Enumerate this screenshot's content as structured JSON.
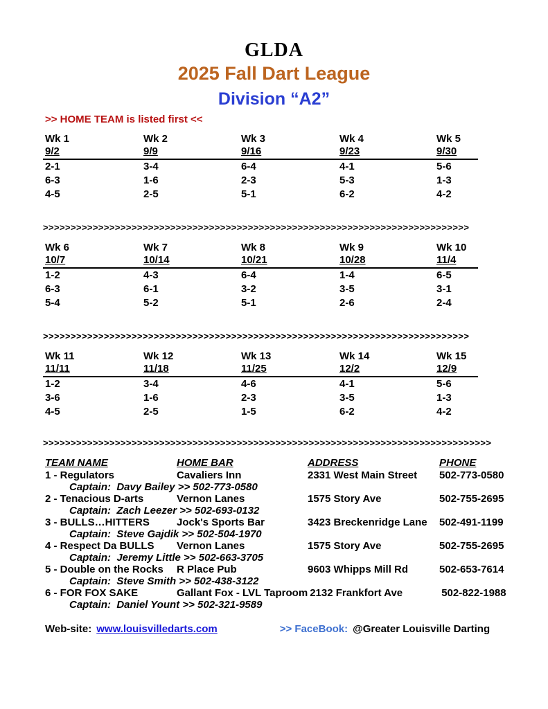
{
  "header": {
    "org": "GLDA",
    "title": "2025 Fall Dart League",
    "division": "Division “A2”",
    "home_team_note": ">> HOME TEAM is listed first <<"
  },
  "separators": {
    "line_a": ">>>>>>>>>>>>>>>>>>>>>>>>>>>>>>>>>>>>>>>>>>>>>>>>>>>>>>>>>>>>>>>>>>>>>>>>>>>>>",
    "line_b": ">>>>>>>>>>>>>>>>>>>>>>>>>>>>>>>>>>>>>>>>>>>>>>>>>>>>>>>>>>>>>>>>>>>>>>>>>>>>>>>>>"
  },
  "colors": {
    "title_orange": "#bc641f",
    "division_blue": "#2a3ed2",
    "note_red": "#b81212",
    "link_blue": "#1717d9",
    "facebook_blue": "#3e70d0"
  },
  "schedule": {
    "blocks": [
      {
        "weeks": [
          {
            "label": "Wk 1",
            "date": "9/2"
          },
          {
            "label": "Wk 2",
            "date": "9/9"
          },
          {
            "label": "Wk 3",
            "date": "9/16"
          },
          {
            "label": "Wk 4",
            "date": "9/23"
          },
          {
            "label": "Wk 5",
            "date": "9/30"
          }
        ],
        "rows": [
          [
            "2-1",
            "3-4",
            "6-4",
            "4-1",
            "5-6"
          ],
          [
            "6-3",
            "1-6",
            "2-3",
            "5-3",
            "1-3"
          ],
          [
            "4-5",
            "2-5",
            "5-1",
            "6-2",
            "4-2"
          ]
        ]
      },
      {
        "weeks": [
          {
            "label": "Wk 6",
            "date": "10/7"
          },
          {
            "label": "Wk 7",
            "date": "10/14"
          },
          {
            "label": "Wk 8",
            "date": "10/21"
          },
          {
            "label": "Wk 9",
            "date": "10/28"
          },
          {
            "label": "Wk 10",
            "date": "11/4"
          }
        ],
        "rows": [
          [
            "1-2",
            "4-3",
            "6-4",
            "1-4",
            "6-5"
          ],
          [
            "6-3",
            "6-1",
            "3-2",
            "3-5",
            "3-1"
          ],
          [
            "5-4",
            "5-2",
            "5-1",
            "2-6",
            "2-4"
          ]
        ]
      },
      {
        "weeks": [
          {
            "label": "Wk 11",
            "date": "11/11"
          },
          {
            "label": "Wk 12",
            "date": "11/18"
          },
          {
            "label": "Wk 13",
            "date": "11/25"
          },
          {
            "label": "Wk 14",
            "date": "12/2"
          },
          {
            "label": "Wk 15",
            "date": "12/9"
          }
        ],
        "rows": [
          [
            "1-2",
            "3-4",
            "4-6",
            "4-1",
            "5-6"
          ],
          [
            "3-6",
            "1-6",
            "2-3",
            "3-5",
            "1-3"
          ],
          [
            "4-5",
            "2-5",
            "1-5",
            "6-2",
            "4-2"
          ]
        ]
      }
    ]
  },
  "teams": {
    "headers": [
      "TEAM NAME",
      "HOME BAR",
      "ADDRESS",
      "PHONE"
    ],
    "rows": [
      {
        "name": "1 - Regulators",
        "bar": "Cavaliers Inn",
        "address": "2331 West Main Street",
        "phone": "502-773-0580",
        "captain": "Captain:  Davy Bailey >> 502-773-0580"
      },
      {
        "name": "2 - Tenacious D-arts",
        "bar": "Vernon Lanes",
        "address": "1575 Story Ave",
        "phone": "502-755-2695",
        "captain": "Captain:  Zach Leezer >> 502-693-0132"
      },
      {
        "name": "3 - BULLS…HITTERS",
        "bar": "Jock's Sports Bar",
        "address": "3423 Breckenridge Lane",
        "phone": "502-491-1199",
        "captain": "Captain:  Steve Gajdik >> 502-504-1970"
      },
      {
        "name": "4 - Respect Da BULLS",
        "bar": "Vernon Lanes",
        "address": "1575 Story Ave",
        "phone": "502-755-2695",
        "captain": "Captain:  Jeremy Little >> 502-663-3705"
      },
      {
        "name": "5 - Double on the Rocks",
        "bar": "R Place Pub",
        "address": "9603 Whipps Mill Rd",
        "phone": "502-653-7614",
        "captain": "Captain:  Steve Smith >> 502-438-3122"
      },
      {
        "name": "6 - FOR FOX SAKE",
        "bar": "Gallant Fox - LVL Taproom",
        "address": "2132 Frankfort Ave",
        "phone": "502-822-1988",
        "captain": "Captain:  Daniel Yount >> 502-321-9589"
      }
    ]
  },
  "footer": {
    "website_label": "Web-site:",
    "website_url": "www.louisvilledarts.com",
    "facebook_label": ">> FaceBook:",
    "facebook_handle": "@Greater Louisville Darting"
  }
}
